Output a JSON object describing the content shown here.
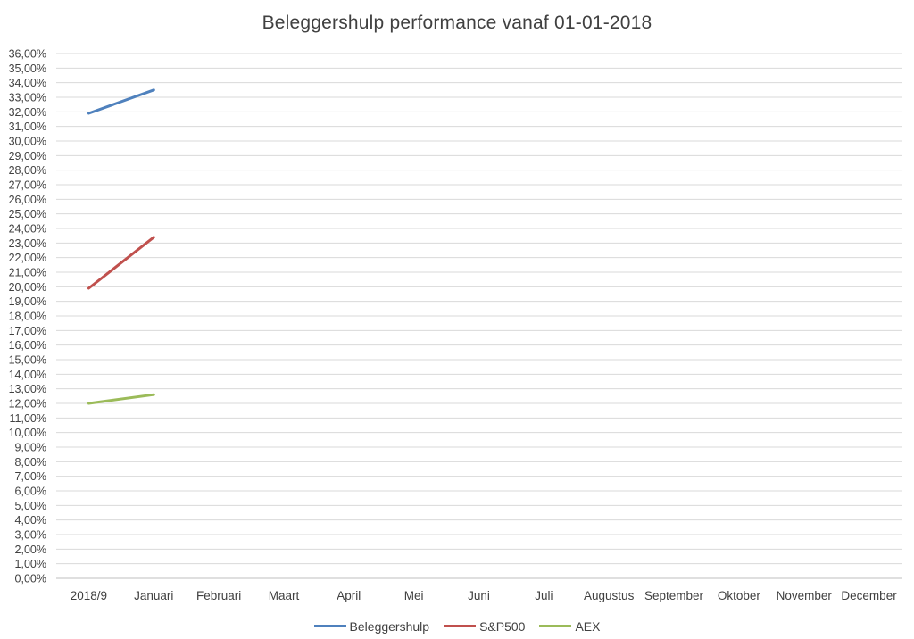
{
  "chart_data": {
    "type": "line",
    "title": "Beleggershulp performance vanaf 01-01-2018",
    "xlabel": "",
    "ylabel": "",
    "ylim": [
      0,
      36
    ],
    "y_step": 1,
    "y_tick_labels": [
      "0,00%",
      "1,00%",
      "2,00%",
      "3,00%",
      "4,00%",
      "5,00%",
      "6,00%",
      "7,00%",
      "8,00%",
      "9,00%",
      "10,00%",
      "11,00%",
      "12,00%",
      "13,00%",
      "14,00%",
      "15,00%",
      "16,00%",
      "17,00%",
      "18,00%",
      "19,00%",
      "20,00%",
      "21,00%",
      "22,00%",
      "23,00%",
      "24,00%",
      "25,00%",
      "26,00%",
      "27,00%",
      "28,00%",
      "29,00%",
      "30,00%",
      "31,00%",
      "32,00%",
      "33,00%",
      "34,00%",
      "35,00%",
      "36,00%"
    ],
    "categories": [
      "2018/9",
      "Januari",
      "Februari",
      "Maart",
      "April",
      "Mei",
      "Juni",
      "Juli",
      "Augustus",
      "September",
      "Oktober",
      "November",
      "December"
    ],
    "grid": true,
    "legend_position": "bottom",
    "series": [
      {
        "name": "Beleggershulp",
        "color": "#4f81bd",
        "values": [
          31.9,
          33.5,
          null,
          null,
          null,
          null,
          null,
          null,
          null,
          null,
          null,
          null,
          null
        ]
      },
      {
        "name": "S&P500",
        "color": "#c0504d",
        "values": [
          19.9,
          23.4,
          null,
          null,
          null,
          null,
          null,
          null,
          null,
          null,
          null,
          null,
          null
        ]
      },
      {
        "name": "AEX",
        "color": "#9bbb59",
        "values": [
          12.0,
          12.6,
          null,
          null,
          null,
          null,
          null,
          null,
          null,
          null,
          null,
          null,
          null
        ]
      }
    ]
  }
}
